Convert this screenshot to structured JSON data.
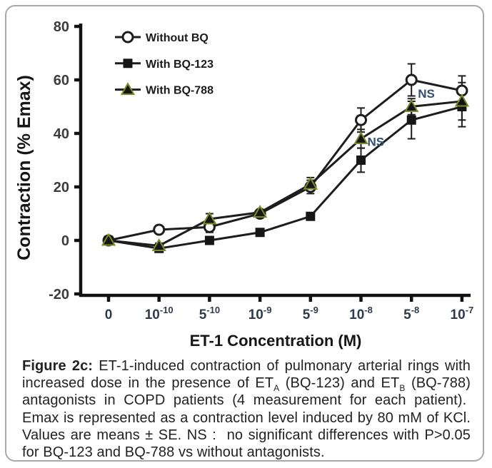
{
  "figure": {
    "caption_segments": [
      {
        "t": "Figure 2c:",
        "b": true
      },
      {
        "t": " ET-1-induced contraction of pulmonary arterial rings with increased dose in the presence of ET"
      },
      {
        "t": "A",
        "sub": true
      },
      {
        "t": " (BQ-123) and ET"
      },
      {
        "t": "B",
        "sub": true
      },
      {
        "t": " (BQ-788) antagonists in COPD patients (4 measurement for each patient).  Emax is represented as a contraction level induced by 80 mM of KCl. Values are means ± SE. NS :  no significant differences with P>0.05 for BQ-123 and BQ-788 vs without antagonists."
      }
    ]
  },
  "chart_data": {
    "type": "line",
    "title": "",
    "xlabel": "ET-1 Concentration (M)",
    "ylabel": "Contraction (% Emax)",
    "ylim": [
      -20,
      80
    ],
    "yticks": [
      80,
      60,
      40,
      20,
      0,
      -20
    ],
    "grid": false,
    "legend_position": "top-left",
    "categories": [
      "0",
      "10^-10",
      "5^-10",
      "10^-9",
      "5^-9",
      "10^-8",
      "5^-8",
      "10^-7"
    ],
    "x_ticks": [
      {
        "base": "0",
        "exp": ""
      },
      {
        "base": "10",
        "exp": "-10"
      },
      {
        "base": "5",
        "exp": "-10"
      },
      {
        "base": "10",
        "exp": "-9"
      },
      {
        "base": "5",
        "exp": "-9"
      },
      {
        "base": "10",
        "exp": "-8"
      },
      {
        "base": "5",
        "exp": "-8"
      },
      {
        "base": "10",
        "exp": "-7"
      }
    ],
    "series": [
      {
        "name": "Without BQ",
        "marker": "circle",
        "values": [
          0,
          4,
          5,
          10,
          20,
          45,
          60,
          56
        ],
        "errors": [
          0.5,
          1,
          2,
          1,
          2.5,
          4.5,
          6,
          5.5
        ]
      },
      {
        "name": "With BQ-123",
        "marker": "square",
        "values": [
          0,
          -3,
          0,
          3,
          9,
          30,
          45,
          50
        ],
        "errors": [
          0.5,
          1,
          1,
          1,
          1,
          4.5,
          7,
          7.5
        ]
      },
      {
        "name": "With BQ-788",
        "marker": "triangle",
        "values": [
          0,
          -2,
          8,
          10.5,
          21,
          38,
          50,
          52
        ],
        "errors": [
          0.5,
          1,
          2,
          1,
          2.5,
          3.5,
          3,
          7
        ]
      }
    ],
    "annotations": [
      {
        "text": "NS",
        "x_index": 6,
        "value": 55
      },
      {
        "text": "NS",
        "x_index": 5,
        "value": 37
      }
    ]
  },
  "colors": {
    "line": "#1d1d1d",
    "axis": "#111111",
    "circle_fill": "#ffffff",
    "marker_fill": "#161616",
    "triangle_edge": "#7b8c2b",
    "ns_text": "#33506e",
    "ytick_label": "#3c3c3c",
    "xtick_label": "#2e3b4e",
    "title_text": "#161616",
    "legend_text": "#1b1b1b",
    "border": "#a9a9a9"
  }
}
